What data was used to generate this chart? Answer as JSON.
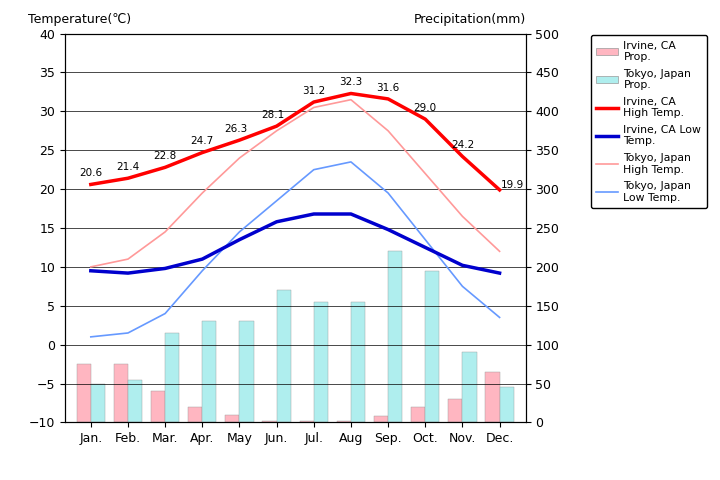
{
  "months": [
    "Jan.",
    "Feb.",
    "Mar.",
    "Apr.",
    "May",
    "Jun.",
    "Jul.",
    "Aug",
    "Sep.",
    "Oct.",
    "Nov.",
    "Dec."
  ],
  "months_x": [
    1,
    2,
    3,
    4,
    5,
    6,
    7,
    8,
    9,
    10,
    11,
    12
  ],
  "irvine_high": [
    20.6,
    21.4,
    22.8,
    24.7,
    26.3,
    28.1,
    31.2,
    32.3,
    31.6,
    29.0,
    24.2,
    19.9
  ],
  "irvine_low": [
    9.5,
    9.2,
    9.8,
    11.0,
    13.5,
    15.8,
    16.8,
    16.8,
    14.8,
    12.5,
    10.2,
    9.2
  ],
  "tokyo_high": [
    10.0,
    11.0,
    14.5,
    19.5,
    24.0,
    27.5,
    30.5,
    31.5,
    27.5,
    22.0,
    16.5,
    12.0
  ],
  "tokyo_low": [
    1.0,
    1.5,
    4.0,
    9.5,
    14.5,
    18.5,
    22.5,
    23.5,
    19.5,
    13.5,
    7.5,
    3.5
  ],
  "irvine_precip_mm": [
    75,
    75,
    40,
    20,
    10,
    2,
    2,
    2,
    8,
    20,
    30,
    65
  ],
  "tokyo_precip_mm": [
    50,
    55,
    115,
    130,
    130,
    170,
    155,
    155,
    220,
    195,
    90,
    45
  ],
  "irvine_high_labels": [
    "20.6",
    "21.4",
    "22.8",
    "24.7",
    "26.3",
    "28.1",
    "31.2",
    "32.3",
    "31.6",
    "29.0",
    "24.2",
    "19.9"
  ],
  "colors": {
    "irvine_precip": "#FFB6C1",
    "tokyo_precip": "#AFEEEE",
    "irvine_high": "#FF0000",
    "irvine_low": "#0000CD",
    "tokyo_high": "#FF9999",
    "tokyo_low": "#6699FF",
    "bg_plot": "#C0C0C0",
    "bg_fig": "#FFFFFF"
  },
  "temp_ylim": [
    -10,
    40
  ],
  "precip_ylim": [
    0,
    500
  ],
  "title_left": "Temperature(℃)",
  "title_right": "Precipitation(mm)",
  "legend_labels": [
    "Irvine, CA\nProp.",
    "Tokyo, Japan\nProp.",
    "Irvine, CA\nHigh Temp.",
    "Irvine, CA Low\nTemp.",
    "Tokyo, Japan\nHigh Temp.",
    "Tokyo, Japan\nLow Temp."
  ]
}
